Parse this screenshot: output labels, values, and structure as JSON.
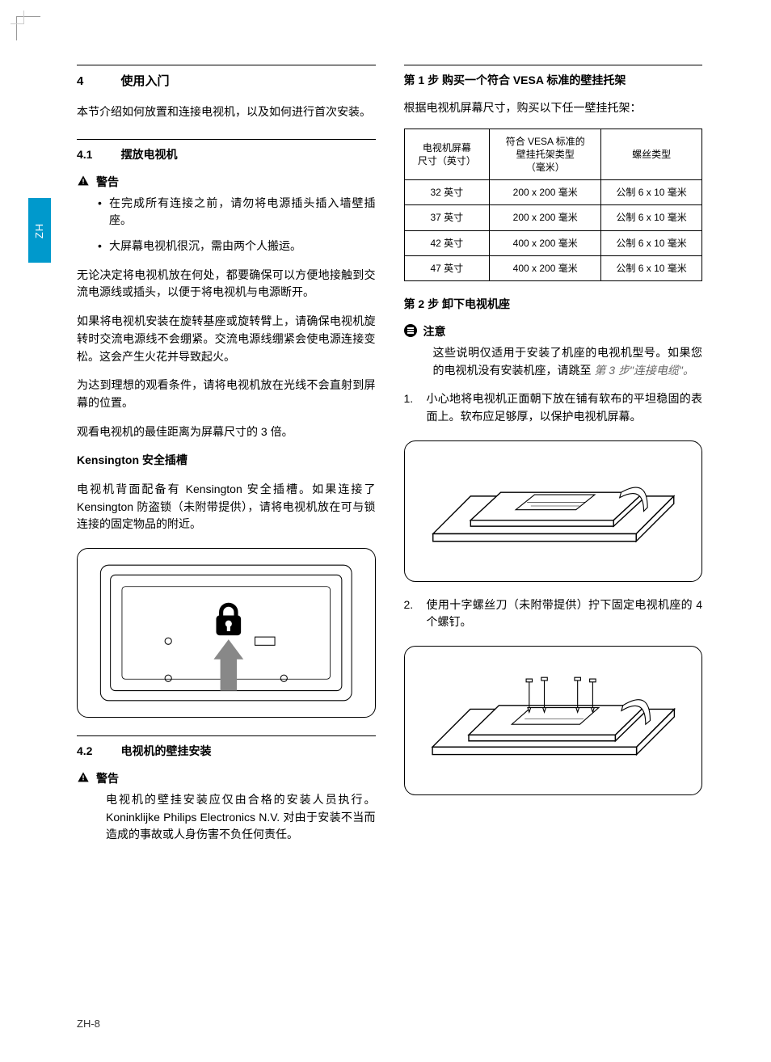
{
  "side_tab": "ZH",
  "footer": "ZH-8",
  "left": {
    "sec_num": "4",
    "sec_title": "使用入门",
    "intro": "本节介绍如何放置和连接电视机，以及如何进行首次安装。",
    "s41_num": "4.1",
    "s41_title": "摆放电视机",
    "warn_label": "警告",
    "warn_items": [
      "在完成所有连接之前，请勿将电源插头插入墙壁插座。",
      "大屏幕电视机很沉，需由两个人搬运。"
    ],
    "p1": "无论决定将电视机放在何处，都要确保可以方便地接触到交流电源线或插头，以便于将电视机与电源断开。",
    "p2": "如果将电视机安装在旋转基座或旋转臂上，请确保电视机旋转时交流电源线不会绷紧。交流电源线绷紧会使电源连接变松。这会产生火花并导致起火。",
    "p3": "为达到理想的观看条件，请将电视机放在光线不会直射到屏幕的位置。",
    "p4": "观看电视机的最佳距离为屏幕尺寸的 3 倍。",
    "kens_title": "Kensington 安全插槽",
    "kens_body": "电视机背面配备有 Kensington 安全插槽。如果连接了 Kensington 防盗锁（未附带提供），请将电视机放在可与锁连接的固定物品的附近。",
    "s42_num": "4.2",
    "s42_title": "电视机的壁挂安装",
    "warn2_label": "警告",
    "warn2_body": "电视机的壁挂安装应仅由合格的安装人员执行。Koninklijke Philips Electronics N.V. 对由于安装不当而造成的事故或人身伤害不负任何责任。"
  },
  "right": {
    "step1_title": "第 1 步 购买一个符合 VESA 标准的壁挂托架",
    "step1_intro": "根据电视机屏幕尺寸，购买以下任一壁挂托架：",
    "table": {
      "headers": [
        "电视机屏幕\n尺寸（英寸）",
        "符合 VESA 标准的\n壁挂托架类型\n（毫米）",
        "螺丝类型"
      ],
      "rows": [
        [
          "32 英寸",
          "200 x 200 毫米",
          "公制 6 x 10 毫米"
        ],
        [
          "37 英寸",
          "200 x 200 毫米",
          "公制 6 x 10 毫米"
        ],
        [
          "42 英寸",
          "400 x 200 毫米",
          "公制 6 x 10 毫米"
        ],
        [
          "47 英寸",
          "400 x 200 毫米",
          "公制 6 x 10 毫米"
        ]
      ]
    },
    "step2_title": "第 2 步 卸下电视机座",
    "note_label": "注意",
    "note_body": "这些说明仅适用于安装了机座的电视机型号。如果您的电视机没有安装机座，请跳至",
    "note_ref": "第 3 步\"连接电缆\"。",
    "ol1": "小心地将电视机正面朝下放在铺有软布的平坦稳固的表面上。软布应足够厚，以保护电视机屏幕。",
    "ol2": "使用十字螺丝刀（未附带提供）拧下固定电视机座的 4 个螺钉。"
  },
  "colors": {
    "tab_bg": "#0099cc",
    "text": "#000000",
    "ref": "#666666"
  }
}
